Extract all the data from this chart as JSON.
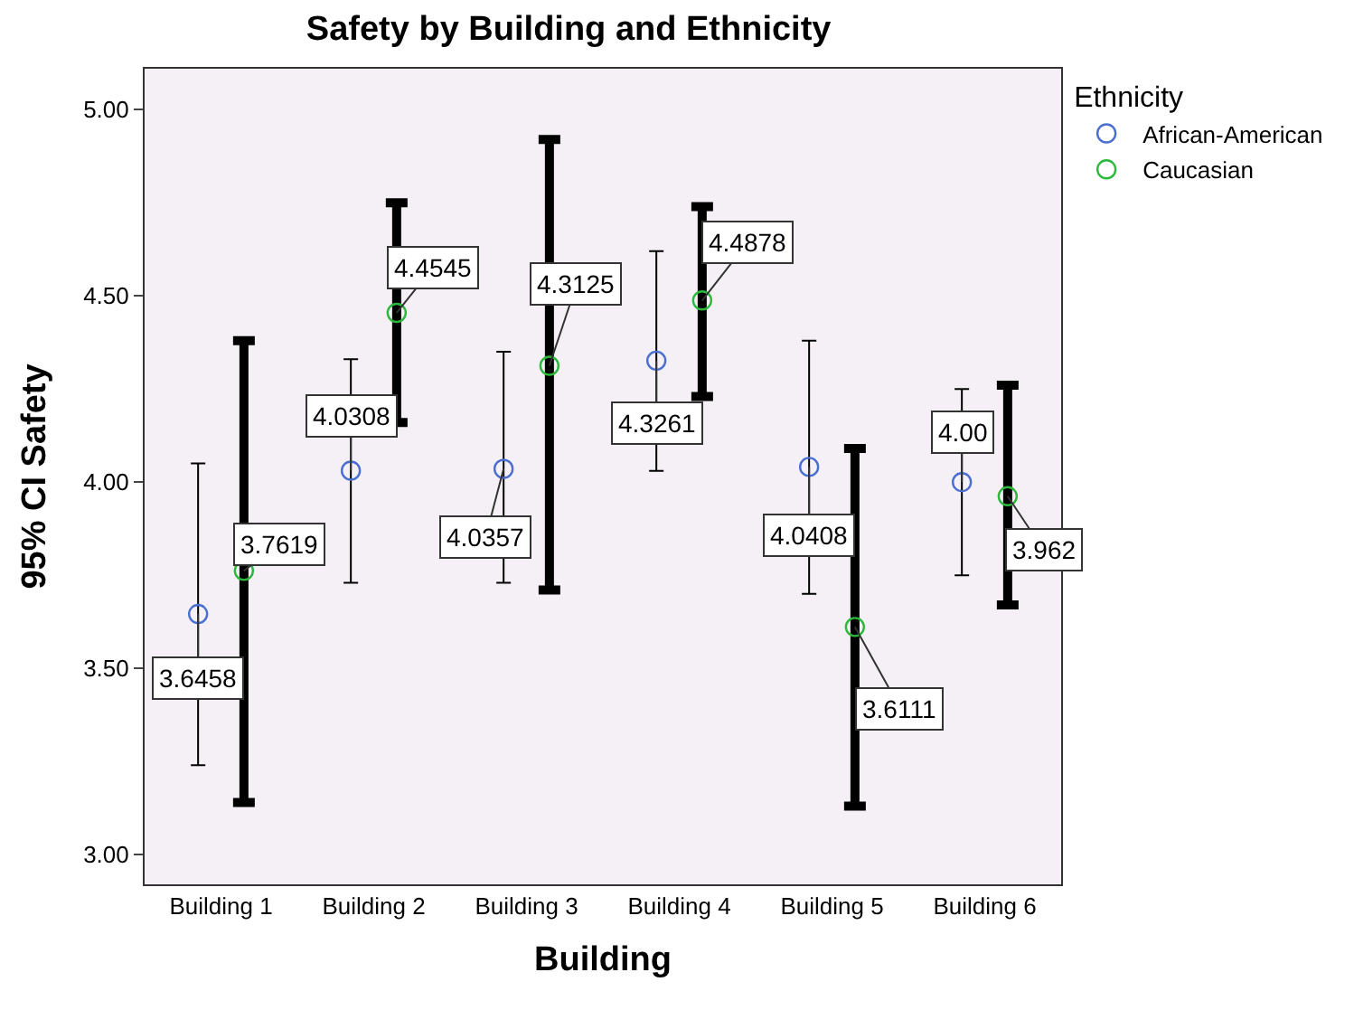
{
  "chart_data": {
    "type": "scatter",
    "title": "Safety by Building and Ethnicity",
    "xlabel": "Building",
    "ylabel": "95% CI Safety",
    "legend_title": "Ethnicity",
    "categories": [
      "Building 1",
      "Building 2",
      "Building 3",
      "Building 4",
      "Building 5",
      "Building 6"
    ],
    "series": [
      {
        "name": "African-American",
        "color": "#4a6fd0",
        "values": [
          3.6458,
          4.0308,
          4.0357,
          4.3261,
          4.0408,
          4.0
        ],
        "errors": [
          [
            3.24,
            4.05
          ],
          [
            3.73,
            4.33
          ],
          [
            3.73,
            4.35
          ],
          [
            4.03,
            4.62
          ],
          [
            3.7,
            4.38
          ],
          [
            3.75,
            4.25
          ]
        ],
        "value_labels": [
          "3.6458",
          "4.0308",
          "4.0357",
          "4.3261",
          "4.0408",
          "4.00"
        ]
      },
      {
        "name": "Caucasian",
        "color": "#2cb83c",
        "values": [
          3.7619,
          4.4545,
          4.3125,
          4.4878,
          3.6111,
          3.962
        ],
        "errors": [
          [
            3.14,
            4.38
          ],
          [
            4.16,
            4.75
          ],
          [
            3.71,
            4.92
          ],
          [
            4.23,
            4.74
          ],
          [
            3.13,
            4.09
          ],
          [
            3.67,
            4.26
          ]
        ],
        "value_labels": [
          "3.7619",
          "4.4545",
          "4.3125",
          "4.4878",
          "3.6111",
          "3.962"
        ]
      }
    ],
    "ylim": [
      2.92,
      5.11
    ],
    "yticks": [
      {
        "value": 3,
        "label": "3.00"
      },
      {
        "value": 3.5,
        "label": "3.50"
      },
      {
        "value": 4,
        "label": "4.00"
      },
      {
        "value": 4.5,
        "label": "4.50"
      },
      {
        "value": 5,
        "label": "5.00"
      }
    ],
    "marker": "circle",
    "grid": false,
    "legend": "top right"
  }
}
